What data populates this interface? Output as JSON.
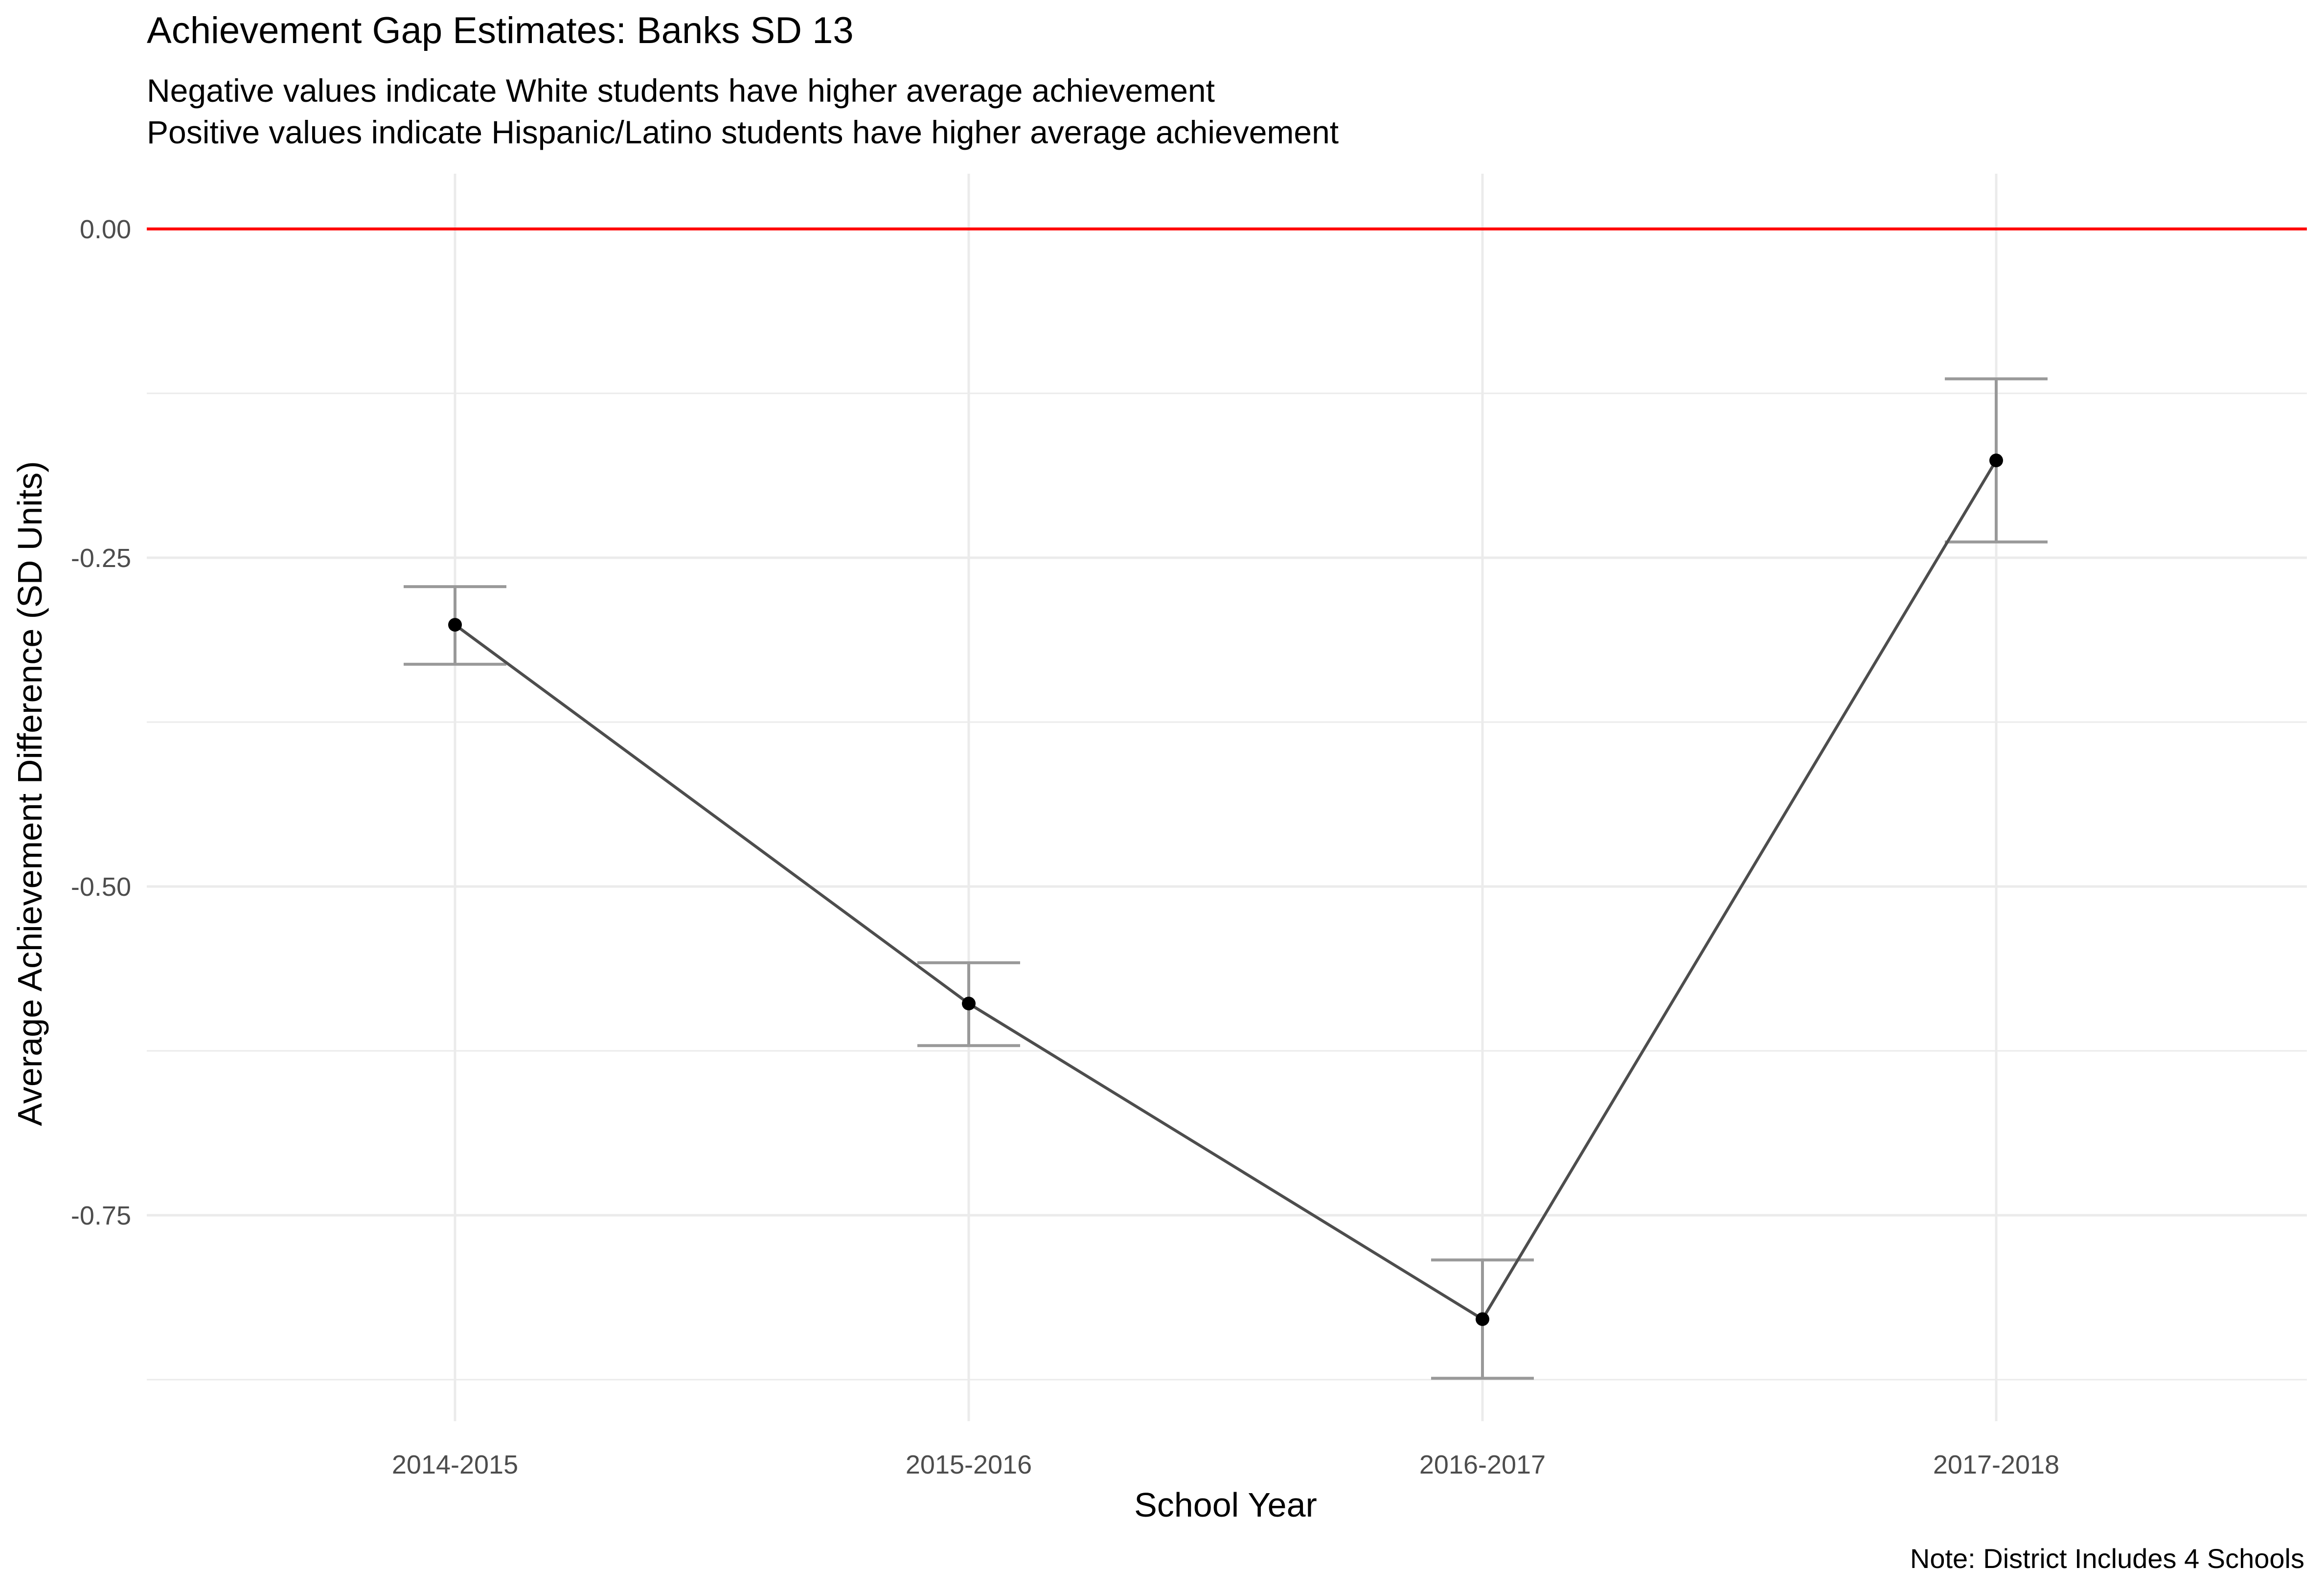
{
  "chart_data": {
    "type": "line",
    "title": "Achievement Gap Estimates: Banks SD 13",
    "subtitle_lines": [
      "Negative values indicate White students have higher average achievement",
      "Positive values indicate Hispanic/Latino students have higher average achievement"
    ],
    "xlabel": "School Year",
    "ylabel": "Average Achievement Difference (SD Units)",
    "caption": "Note: District Includes 4 Schools",
    "categories": [
      "2014-2015",
      "2015-2016",
      "2016-2017",
      "2017-2018"
    ],
    "series": [
      {
        "values": [
          -0.301,
          -0.589,
          -0.829,
          -0.176
        ],
        "lower": [
          -0.331,
          -0.621,
          -0.874,
          -0.238
        ],
        "upper": [
          -0.272,
          -0.558,
          -0.784,
          -0.114
        ]
      }
    ],
    "yticks": [
      0.0,
      -0.25,
      -0.5,
      -0.75
    ],
    "ytick_labels": [
      "0.00",
      "-0.25",
      "-0.50",
      "-0.75"
    ],
    "ylim": [
      -0.9,
      0.04
    ],
    "reference_line": {
      "y": 0.0,
      "color": "#ff0000"
    },
    "colors": {
      "line": "#4d4d4d",
      "point": "#000000",
      "errorbar": "#999999",
      "grid": "#ebebeb"
    },
    "grid": true,
    "legend": "none"
  }
}
